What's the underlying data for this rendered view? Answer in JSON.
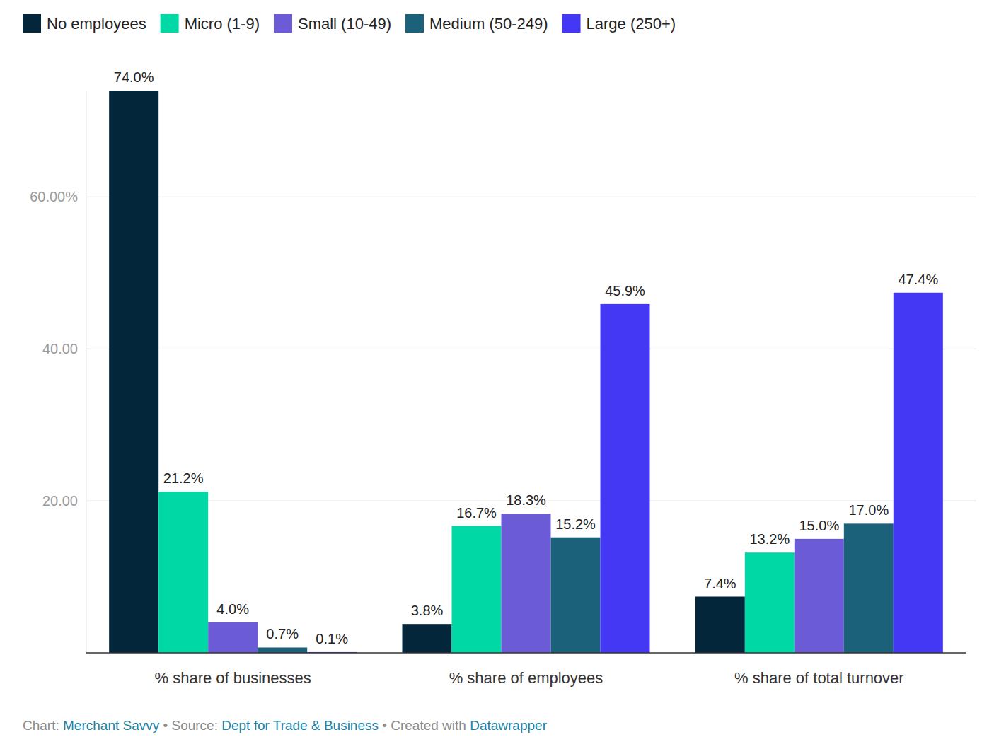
{
  "chart_data": {
    "type": "bar",
    "categories": [
      "% share of businesses",
      "% share of employees",
      "% share of total turnover"
    ],
    "series": [
      {
        "name": "No employees",
        "color": "#03263b",
        "values": [
          74.0,
          3.8,
          7.4
        ],
        "value_labels": [
          "74.0%",
          "3.8%",
          "7.4%"
        ]
      },
      {
        "name": "Micro (1-9)",
        "color": "#00d9a6",
        "values": [
          21.2,
          16.7,
          13.2
        ],
        "value_labels": [
          "21.2%",
          "16.7%",
          "13.2%"
        ]
      },
      {
        "name": "Small (10-49)",
        "color": "#6b5bd6",
        "values": [
          4.0,
          18.3,
          15.0
        ],
        "value_labels": [
          "4.0%",
          "18.3%",
          "15.0%"
        ]
      },
      {
        "name": "Medium (50-249)",
        "color": "#1b6179",
        "values": [
          0.7,
          15.2,
          17.0
        ],
        "value_labels": [
          "0.7%",
          "15.2%",
          "17.0%"
        ]
      },
      {
        "name": "Large (250+)",
        "color": "#4538f5",
        "values": [
          0.1,
          45.9,
          47.4
        ],
        "value_labels": [
          "0.1%",
          "45.9%",
          "47.4%"
        ]
      }
    ],
    "ylim": [
      0,
      74
    ],
    "yticks": [
      {
        "value": 20,
        "label": "20.00"
      },
      {
        "value": 40,
        "label": "40.00"
      },
      {
        "value": 60,
        "label": "60.00%"
      }
    ],
    "grid": true,
    "legend": "top-left",
    "data_labels": true,
    "footer": {
      "chart_label": "Chart:",
      "chart_by": "Merchant Savvy",
      "separator": "•",
      "source_label": "Source:",
      "source": "Dept for Trade & Business",
      "created_label": "Created with",
      "created_with": "Datawrapper"
    }
  }
}
